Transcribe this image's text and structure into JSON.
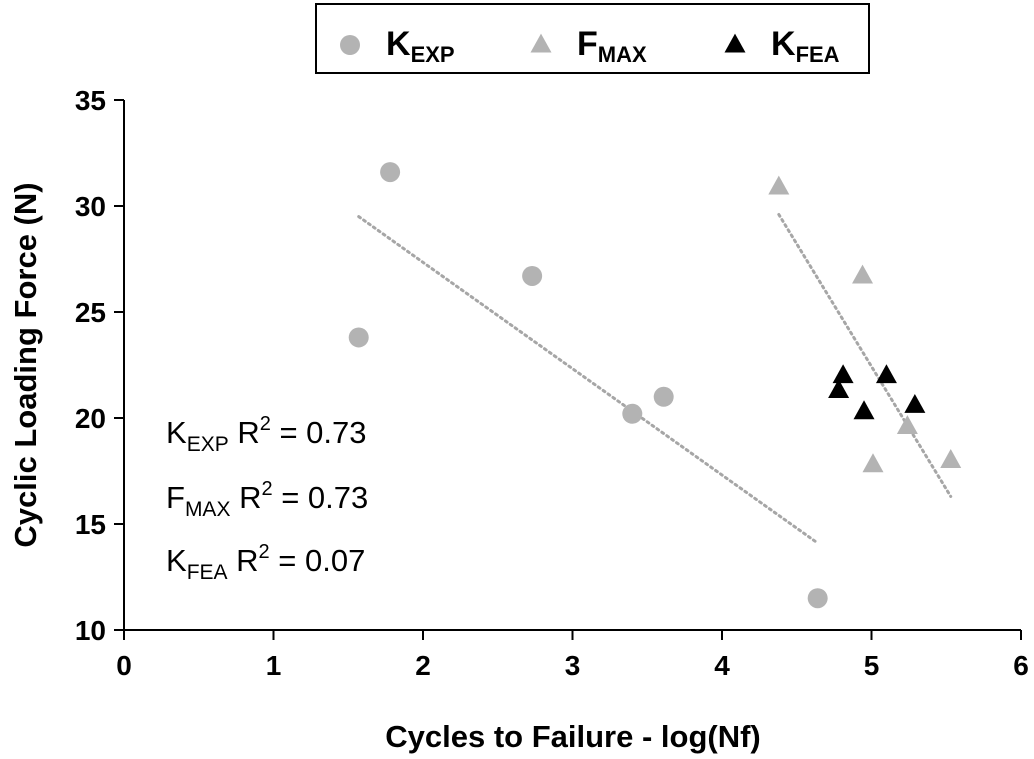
{
  "chart_data": {
    "type": "scatter",
    "xlabel": "Cycles to Failure - log(Nf)",
    "ylabel": "Cyclic Loading Force (N)",
    "xlim": [
      0,
      6
    ],
    "ylim": [
      10,
      35
    ],
    "xticks": [
      0,
      1,
      2,
      3,
      4,
      5,
      6
    ],
    "yticks": [
      10,
      15,
      20,
      25,
      30,
      35
    ],
    "grid": false,
    "legend_position": "top-center",
    "series": [
      {
        "name_main": "K",
        "name_sub": "EXP",
        "marker": "circle",
        "color": "#b3b3b3",
        "points": [
          [
            1.57,
            23.8
          ],
          [
            1.78,
            31.6
          ],
          [
            2.73,
            26.7
          ],
          [
            3.4,
            20.2
          ],
          [
            3.61,
            21.0
          ],
          [
            4.64,
            11.5
          ]
        ],
        "trend": {
          "x": [
            1.57,
            4.64
          ],
          "y": [
            29.5,
            14.1
          ]
        }
      },
      {
        "name_main": "F",
        "name_sub": "MAX",
        "marker": "triangle",
        "color": "#b3b3b3",
        "points": [
          [
            4.38,
            30.9
          ],
          [
            4.94,
            26.7
          ],
          [
            5.01,
            17.8
          ],
          [
            5.24,
            19.6
          ],
          [
            5.53,
            18.0
          ]
        ],
        "trend": {
          "x": [
            4.38,
            5.53
          ],
          "y": [
            29.6,
            16.3
          ]
        }
      },
      {
        "name_main": "K",
        "name_sub": "FEA",
        "marker": "triangle",
        "color": "#000000",
        "points": [
          [
            4.78,
            21.3
          ],
          [
            4.81,
            22.0
          ],
          [
            4.95,
            20.3
          ],
          [
            5.1,
            22.0
          ],
          [
            5.29,
            20.6
          ]
        ]
      }
    ],
    "annotations": [
      {
        "main": "K",
        "sub": "EXP",
        "rest": " R",
        "sup": "2",
        "value": " = 0.73"
      },
      {
        "main": "F",
        "sub": "MAX",
        "rest": " R",
        "sup": "2",
        "value": " = 0.73"
      },
      {
        "main": "K",
        "sub": "FEA",
        "rest": " R",
        "sup": "2",
        "value": " = 0.07"
      }
    ]
  }
}
